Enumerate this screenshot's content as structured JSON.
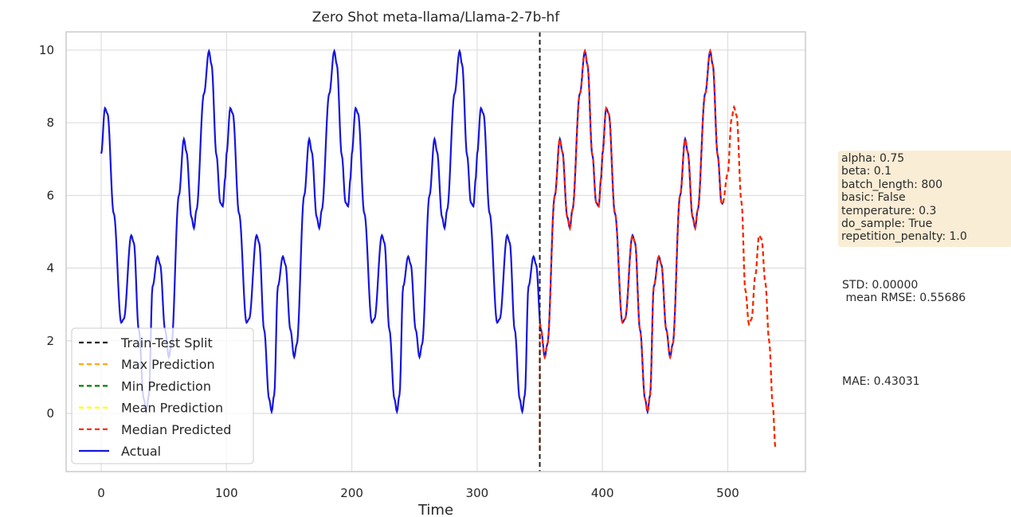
{
  "chart_data": {
    "type": "line",
    "title": "Zero Shot meta-llama/Llama-2-7b-hf",
    "xlabel": "Time",
    "ylabel": "",
    "xlim": [
      -28,
      562
    ],
    "ylim": [
      -1.6,
      10.5
    ],
    "xticks": [
      0,
      100,
      200,
      300,
      400,
      500
    ],
    "yticks": [
      0,
      2,
      4,
      6,
      8,
      10
    ],
    "grid": true,
    "legend_position": "lower-left",
    "train_test_split_x": 350,
    "period": 100,
    "actual_x_max": 496,
    "prediction_x_range": [
      350,
      538
    ],
    "series": [
      {
        "name": "Train-Test Split",
        "color": "#222222",
        "style": "dashed"
      },
      {
        "name": "Max Prediction",
        "color": "#ffa500",
        "style": "dashed"
      },
      {
        "name": "Min Prediction",
        "color": "#008000",
        "style": "dashed"
      },
      {
        "name": "Mean Prediction",
        "color": "#ffff00",
        "style": "dashed"
      },
      {
        "name": "Median Predicted",
        "color": "#ff2200",
        "style": "dashed"
      },
      {
        "name": "Actual",
        "color": "#1515e0",
        "style": "solid"
      }
    ],
    "cycle_keypoints": [
      [
        0,
        7.15
      ],
      [
        3,
        8.4
      ],
      [
        5,
        8.25
      ],
      [
        10,
        5.5
      ],
      [
        16,
        2.5
      ],
      [
        18,
        2.6
      ],
      [
        24,
        4.9
      ],
      [
        26,
        4.7
      ],
      [
        30,
        2.3
      ],
      [
        34,
        0.4
      ],
      [
        36,
        0.05
      ],
      [
        38,
        0.5
      ],
      [
        41,
        3.5
      ],
      [
        45,
        4.32
      ],
      [
        47,
        4.1
      ],
      [
        51,
        2.3
      ],
      [
        54,
        1.55
      ],
      [
        56,
        1.9
      ],
      [
        62,
        6.0
      ],
      [
        66,
        7.55
      ],
      [
        68,
        7.2
      ],
      [
        72,
        5.4
      ],
      [
        74,
        5.1
      ],
      [
        76,
        5.6
      ],
      [
        82,
        8.8
      ],
      [
        86,
        9.97
      ],
      [
        88,
        9.6
      ],
      [
        92,
        7.1
      ],
      [
        95,
        5.8
      ],
      [
        97,
        5.7
      ],
      [
        99,
        6.5
      ],
      [
        100,
        7.15
      ]
    ],
    "prediction_tail": [
      [
        496,
        5.8
      ],
      [
        500,
        6.6
      ],
      [
        503,
        8.1
      ],
      [
        505,
        8.43
      ],
      [
        507,
        8.2
      ],
      [
        511,
        5.8
      ],
      [
        514,
        3.4
      ],
      [
        517,
        2.45
      ],
      [
        519,
        2.6
      ],
      [
        522,
        3.8
      ],
      [
        525,
        4.9
      ],
      [
        527,
        4.8
      ],
      [
        530,
        3.6
      ],
      [
        533,
        2.0
      ],
      [
        536,
        0.2
      ],
      [
        538,
        -0.95
      ]
    ]
  },
  "params": {
    "alpha": "alpha: 0.75",
    "beta": "beta: 0.1",
    "batch_length": "batch_length: 800",
    "basic": "basic: False",
    "temperature": "temperature: 0.3",
    "do_sample": "do_sample: True",
    "repetition_penalty": "repetition_penalty: 1.0"
  },
  "stats": {
    "std": "STD: 0.00000",
    "rmse": " mean RMSE: 0.55686",
    "mae": "MAE: 0.43031"
  }
}
